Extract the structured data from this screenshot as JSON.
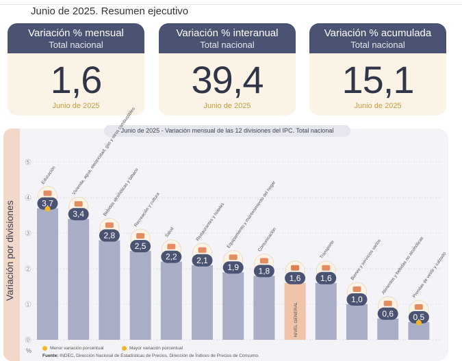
{
  "page_title": "Junio de 2025. Resumen ejecutivo",
  "cards": [
    {
      "title": "Variación % mensual",
      "subtitle": "Total nacional",
      "value": "1,6",
      "date": "Junio de 2025"
    },
    {
      "title": "Variación % interanual",
      "subtitle": "Total nacional",
      "value": "39,4",
      "date": "Junio de 2025"
    },
    {
      "title": "Variación % acumulada",
      "subtitle": "Total nacional",
      "value": "15,1",
      "date": "Junio de 2025"
    }
  ],
  "chart_header": "Junio de 2025 - Variación mensual de las 12 divisiones del IPC. Total nacional",
  "y_axis_title": "Variación por divisiones",
  "y_unit": "%",
  "legend": {
    "min_label": "Menor variación porcentual",
    "max_label": "Mayor variación porcentual"
  },
  "footer": {
    "prefix": "Fuente:",
    "text": "INDEC, Dirección Nacional de Estadísticas de Precios, Dirección de Índices de Precios de Consumo."
  },
  "colors": {
    "header": "#4b5373",
    "bar": "#a9aec6",
    "bar_general": "#f0c4a8",
    "badge": "#4b5373",
    "marker": "#f3b82a"
  },
  "chart_data": {
    "type": "bar",
    "ylim": [
      0,
      5
    ],
    "yticks": [
      "0",
      "1",
      "2",
      "3",
      "4",
      "5"
    ],
    "grid": true,
    "categories": [
      "Educación",
      "Vivienda, agua, electricidad, gas y otros combustibles",
      "Bebidas alcohólicas y tabaco",
      "Recreación y cultura",
      "Salud",
      "Restaurantes y hoteles",
      "Equipamiento y mantenimiento del hogar",
      "Comunicación",
      "NIVEL GENERAL",
      "Transporte",
      "Bienes y servicios varios",
      "Alimentos y bebidas no alcohólicas",
      "Prendas de vestir y calzado"
    ],
    "values": [
      3.7,
      3.4,
      2.8,
      2.5,
      2.2,
      2.1,
      1.9,
      1.8,
      1.6,
      1.6,
      1.0,
      0.6,
      0.5
    ],
    "value_labels": [
      "3,7",
      "3,4",
      "2,8",
      "2,5",
      "2,2",
      "2,1",
      "1,9",
      "1,8",
      "1,6",
      "1,6",
      "1,0",
      "0,6",
      "0,5"
    ],
    "icons": [
      "book-icon",
      "bulb-icon",
      "drinks-icon",
      "umbrella-icon",
      "first-aid-icon",
      "dining-icon",
      "appliance-icon",
      "phone-icon",
      "chart-icon",
      "bus-icon",
      "razor-icon",
      "chicken-icon",
      "shoes-icon"
    ],
    "highlight_index": 8,
    "max_index": 0,
    "min_index": 12
  }
}
